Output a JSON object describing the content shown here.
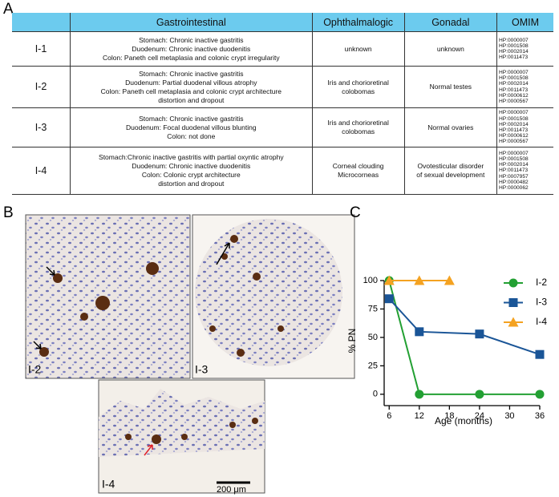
{
  "panel_labels": [
    "A",
    "B",
    "C"
  ],
  "table": {
    "header": [
      "Gastrointestinal",
      "Ophthalmalogic",
      "Gonadal",
      "OMIM"
    ],
    "rows": [
      {
        "id": "I-1",
        "cells": [
          [
            "Stomach: Chronic inactive gastritis",
            "Duodenum: Chronic inactive duodenitis",
            "Colon: Paneth cell metaplasia and colonic crypt irregularity"
          ],
          [
            "unknown"
          ],
          [
            "unknown"
          ],
          [
            "HP:0000007",
            "HP:0001508",
            "HP:0002014",
            "HP:0011473"
          ]
        ]
      },
      {
        "id": "I-2",
        "cells": [
          [
            "Stomach: Chronic inactive gastritis",
            "Duodenum: Partial duodenal villous atrophy",
            "Colon: Paneth cell metaplasia and colonic crypt architecture",
            "distortion and dropout"
          ],
          [
            "Iris and chorioretinal",
            "colobomas"
          ],
          [
            "Normal testes"
          ],
          [
            "HP:0000007",
            "HP:0001508",
            "HP:0002014",
            "HP:0011473",
            "HP:0000612",
            "HP:0000567"
          ]
        ]
      },
      {
        "id": "I-3",
        "cells": [
          [
            "Stomach: Chronic inactive gastritis",
            "Duodenum: Focal duodenal villous blunting",
            "Colon: not done"
          ],
          [
            "Iris and chorioretinal",
            "colobomas"
          ],
          [
            "Normal ovaries"
          ],
          [
            "HP:0000007",
            "HP:0001508",
            "HP:0002014",
            "HP:0011473",
            "HP:0000612",
            "HP:0000567"
          ]
        ]
      },
      {
        "id": "I-4",
        "cells": [
          [
            "Stomach:Chronic inactive gastritis with partial oxyntic atrophy",
            "Duodenum: Chronic inactive duodenitis",
            "Colon: Colonic crypt architecture",
            "distortion and dropout"
          ],
          [
            "Corneal clouding",
            "Microcorneas"
          ],
          [
            "Ovotesticular disorder",
            "of sexual development"
          ],
          [
            "HP:0000007",
            "HP:0001508",
            "HP:0002014",
            "HP:0011473",
            "HP:0007957",
            "HP:0000482",
            "HP:0000062"
          ]
        ]
      }
    ]
  },
  "images": {
    "labels": [
      "I-2",
      "I-3",
      "I-4"
    ],
    "scale_bar": "200 μm"
  },
  "chart_data": {
    "type": "line",
    "xlabel": "Age (months)",
    "ylabel": "% PN",
    "series": [
      {
        "name": "I-2",
        "color": "#23a033",
        "marker": "circle",
        "x": [
          6,
          12,
          24,
          36
        ],
        "values": [
          100,
          0,
          0,
          0
        ]
      },
      {
        "name": "I-3",
        "color": "#1a5597",
        "marker": "square",
        "x": [
          6,
          12,
          24,
          36
        ],
        "values": [
          84,
          55,
          53,
          35
        ]
      },
      {
        "name": "I-4",
        "color": "#f4a221",
        "marker": "triangle",
        "x": [
          6,
          12,
          18
        ],
        "values": [
          100,
          100,
          100
        ]
      }
    ],
    "xlim": [
      5,
      36
    ],
    "xticks": [
      6,
      12,
      18,
      24,
      30,
      36
    ],
    "ylim": [
      -10,
      100
    ],
    "yticks": [
      0,
      25,
      50,
      75,
      100
    ],
    "legend": "upper right"
  }
}
